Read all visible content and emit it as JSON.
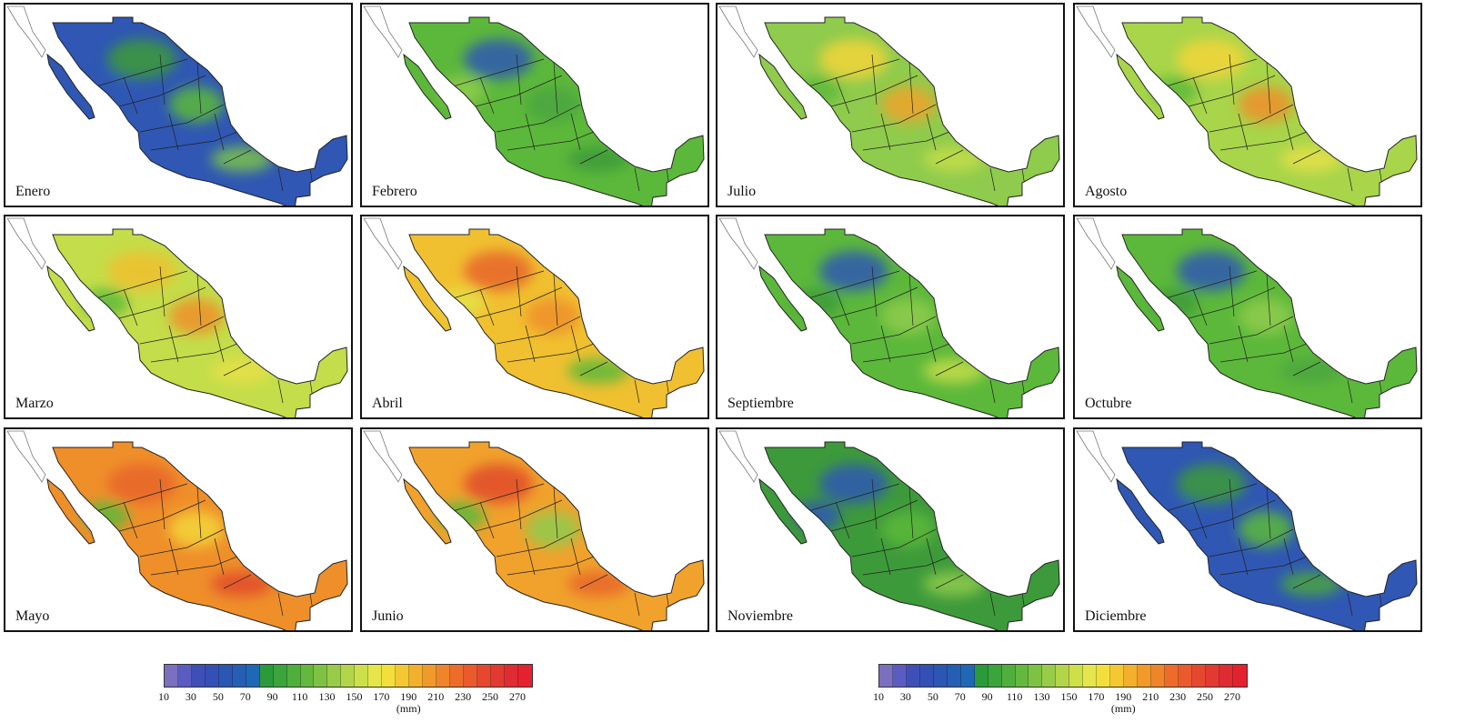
{
  "maps": [
    {
      "month": "Enero",
      "dominant": "#2f57b3",
      "blobs": [
        "#3d9a3a",
        "#5cb83a",
        "#2f57b3",
        "#7cc34a"
      ]
    },
    {
      "month": "Febrero",
      "dominant": "#5cb83a",
      "blobs": [
        "#2f57b3",
        "#4aa63e",
        "#8fcb4c",
        "#3d9a3a"
      ]
    },
    {
      "month": "Julio",
      "dominant": "#8fcb4c",
      "blobs": [
        "#f3d53a",
        "#f0a22c",
        "#5cb83a",
        "#c4dd4a"
      ]
    },
    {
      "month": "Agosto",
      "dominant": "#a8d54a",
      "blobs": [
        "#f3d53a",
        "#ef8f2a",
        "#5cb83a",
        "#e6e048"
      ]
    },
    {
      "month": "Marzo",
      "dominant": "#c4dd4a",
      "blobs": [
        "#f0c030",
        "#ef8f2a",
        "#5cb83a",
        "#e6e048"
      ]
    },
    {
      "month": "Abril",
      "dominant": "#f0c030",
      "blobs": [
        "#e8642a",
        "#ef8f2a",
        "#e6e048",
        "#5cb83a"
      ]
    },
    {
      "month": "Septiembre",
      "dominant": "#5cb83a",
      "blobs": [
        "#2f57b3",
        "#8fcb4c",
        "#3d9a3a",
        "#c4dd4a"
      ]
    },
    {
      "month": "Octubre",
      "dominant": "#5cb83a",
      "blobs": [
        "#2f57b3",
        "#8fcb4c",
        "#3d9a3a",
        "#4aa63e"
      ]
    },
    {
      "month": "Mayo",
      "dominant": "#ef8f2a",
      "blobs": [
        "#e8642a",
        "#f3d53a",
        "#5cb83a",
        "#e04a2a"
      ]
    },
    {
      "month": "Junio",
      "dominant": "#f0a22c",
      "blobs": [
        "#e04a2a",
        "#8fcb4c",
        "#5cb83a",
        "#e8642a"
      ]
    },
    {
      "month": "Noviembre",
      "dominant": "#3d9a3a",
      "blobs": [
        "#2f57b3",
        "#5cb83a",
        "#2f57b3",
        "#8fcb4c"
      ]
    },
    {
      "month": "Diciembre",
      "dominant": "#2f57b3",
      "blobs": [
        "#3d9a3a",
        "#5cb83a",
        "#2f57b3",
        "#4aa63e"
      ]
    }
  ],
  "legend": {
    "colors": [
      "#7b6fc0",
      "#5a5dbf",
      "#3f4fb8",
      "#3450b5",
      "#2b57b3",
      "#255fb3",
      "#1f68b5",
      "#2a9a3a",
      "#3aa53a",
      "#4faf3c",
      "#63b83e",
      "#7ec244",
      "#98cc48",
      "#b3d54a",
      "#cde04a",
      "#e6e54a",
      "#f2df3c",
      "#f4c832",
      "#f2b02c",
      "#f19a2a",
      "#ef842a",
      "#ed6c2a",
      "#ea5a2c",
      "#e6482e",
      "#e23a30",
      "#de2c32",
      "#e4212e"
    ],
    "ticks": [
      "10",
      "30",
      "50",
      "70",
      "90",
      "110",
      "130",
      "150",
      "170",
      "190",
      "210",
      "230",
      "250",
      "270"
    ],
    "unit": "(mm)"
  }
}
